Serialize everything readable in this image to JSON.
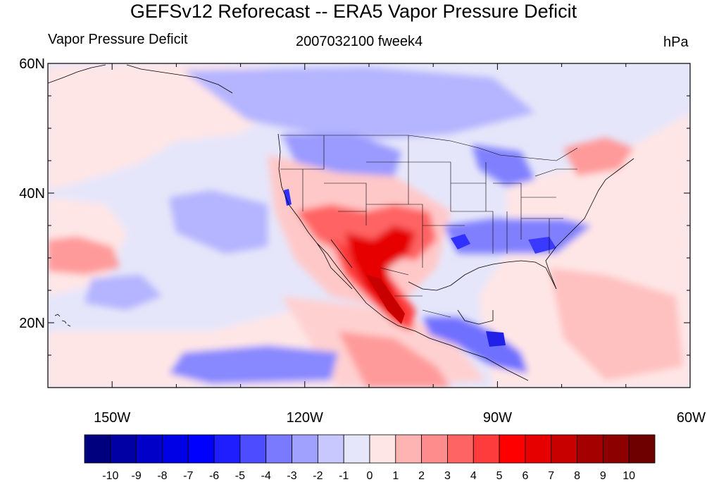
{
  "title": "GEFSv12 Reforecast -- ERA5 Vapor Pressure Deficit",
  "left_string": "Vapor Pressure Deficit",
  "center_string": "2007032100 fweek4",
  "right_string": "hPa",
  "map": {
    "lat_range": [
      10,
      60
    ],
    "lon_range": [
      -160,
      -60
    ],
    "lat_ticks": [
      {
        "value": 60,
        "label": "60N"
      },
      {
        "value": 40,
        "label": "40N"
      },
      {
        "value": 20,
        "label": "20N"
      }
    ],
    "lon_ticks": [
      {
        "value": -150,
        "label": "150W"
      },
      {
        "value": -120,
        "label": "120W"
      },
      {
        "value": -90,
        "label": "90W"
      },
      {
        "value": -60,
        "label": "60W"
      }
    ],
    "background_color": "#e6e6fa"
  },
  "colorbar": {
    "labels": [
      "-10",
      "-9",
      "-8",
      "-7",
      "-6",
      "-5",
      "-4",
      "-3",
      "-2",
      "-1",
      "0",
      "1",
      "2",
      "3",
      "4",
      "5",
      "6",
      "7",
      "8",
      "9",
      "10"
    ],
    "colors": [
      "#00007f",
      "#0000a5",
      "#0000c8",
      "#0000e6",
      "#0000ff",
      "#1e1eff",
      "#4d4dff",
      "#7a7aff",
      "#a0a0ff",
      "#c8c8ff",
      "#e6e6fa",
      "#ffe6e6",
      "#ffb4b4",
      "#ff8c8c",
      "#ff6464",
      "#ff3c3c",
      "#ff0000",
      "#e60000",
      "#c80000",
      "#a50000",
      "#8c0000",
      "#6e0000"
    ]
  }
}
